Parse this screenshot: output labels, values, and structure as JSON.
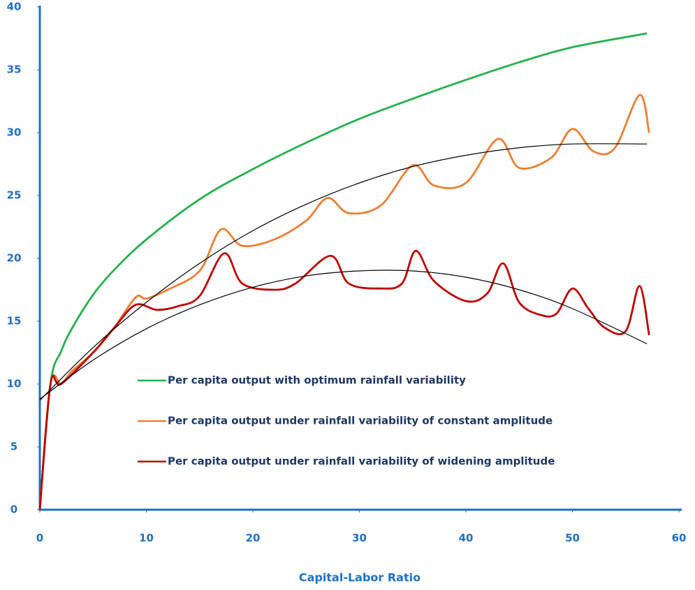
{
  "chart_data": {
    "type": "line",
    "x_label": "Capital-Labor Ratio",
    "xlim": [
      0,
      60
    ],
    "xticks": [
      0,
      10,
      20,
      30,
      40,
      50,
      60
    ],
    "ylim": [
      0,
      40
    ],
    "yticks": [
      0,
      5,
      10,
      15,
      20,
      25,
      30,
      35,
      40
    ],
    "axis_color": "#1f6fc5",
    "series": [
      {
        "name": "Per capita output with optimum rainfall variability",
        "color": "#22b14c",
        "x": [
          0,
          1,
          2,
          3,
          5,
          7,
          10,
          15,
          20,
          25,
          30,
          35,
          40,
          45,
          50,
          57
        ],
        "values": [
          0,
          10,
          12.6,
          14.4,
          17.1,
          19.1,
          21.5,
          24.7,
          27.1,
          29.2,
          31.1,
          32.7,
          34.2,
          35.6,
          36.8,
          37.9
        ]
      },
      {
        "name": "Per capita output under rainfall variability of constant amplitude",
        "color": "#ed7d31",
        "x": [
          0,
          1,
          2,
          3,
          5,
          7,
          9,
          10,
          12,
          15,
          17,
          19,
          22,
          25,
          27,
          29,
          32,
          35,
          37,
          40,
          43,
          45,
          48,
          50,
          52,
          54,
          56.3,
          57.2
        ],
        "values": [
          0,
          10,
          10,
          11,
          12.5,
          14.5,
          16.9,
          16.8,
          17.5,
          19,
          22.3,
          21,
          21.5,
          23,
          24.8,
          23.6,
          24.2,
          27.4,
          25.8,
          26,
          29.5,
          27.2,
          28,
          30.3,
          28.5,
          28.8,
          33,
          30
        ]
      },
      {
        "name": "Per capita output under rainfall variability of widening amplitude",
        "color": "#c00000",
        "x": [
          0,
          1,
          2,
          5,
          7,
          9,
          11,
          13,
          15,
          17.3,
          19,
          22,
          24,
          27.3,
          29,
          32,
          34,
          35.3,
          37,
          40,
          42,
          43.5,
          45,
          47,
          48.5,
          50,
          51.5,
          53,
          55,
          56.3,
          57.2
        ],
        "values": [
          0,
          10,
          10,
          12.5,
          14.5,
          16.3,
          15.9,
          16.2,
          17,
          20.4,
          18,
          17.5,
          18,
          20.2,
          18,
          17.6,
          18,
          20.6,
          18.2,
          16.6,
          17.2,
          19.6,
          16.5,
          15.5,
          15.6,
          17.6,
          16,
          14.5,
          14.2,
          17.8,
          13.9
        ]
      },
      {
        "color": "#000000",
        "x": [
          0,
          5,
          10,
          15,
          20,
          25,
          30,
          35,
          40,
          45,
          50,
          57
        ],
        "values": [
          8.7,
          12.9,
          16.5,
          19.6,
          22.2,
          24.3,
          26,
          27.3,
          28.2,
          28.8,
          29.1,
          29.1
        ]
      },
      {
        "color": "#000000",
        "x": [
          0,
          5,
          10,
          15,
          20,
          25,
          30,
          35,
          40,
          45,
          50,
          57
        ],
        "values": [
          8.8,
          11.9,
          14.4,
          16.3,
          17.7,
          18.6,
          19,
          19,
          18.5,
          17.5,
          16,
          13.2
        ]
      }
    ]
  }
}
